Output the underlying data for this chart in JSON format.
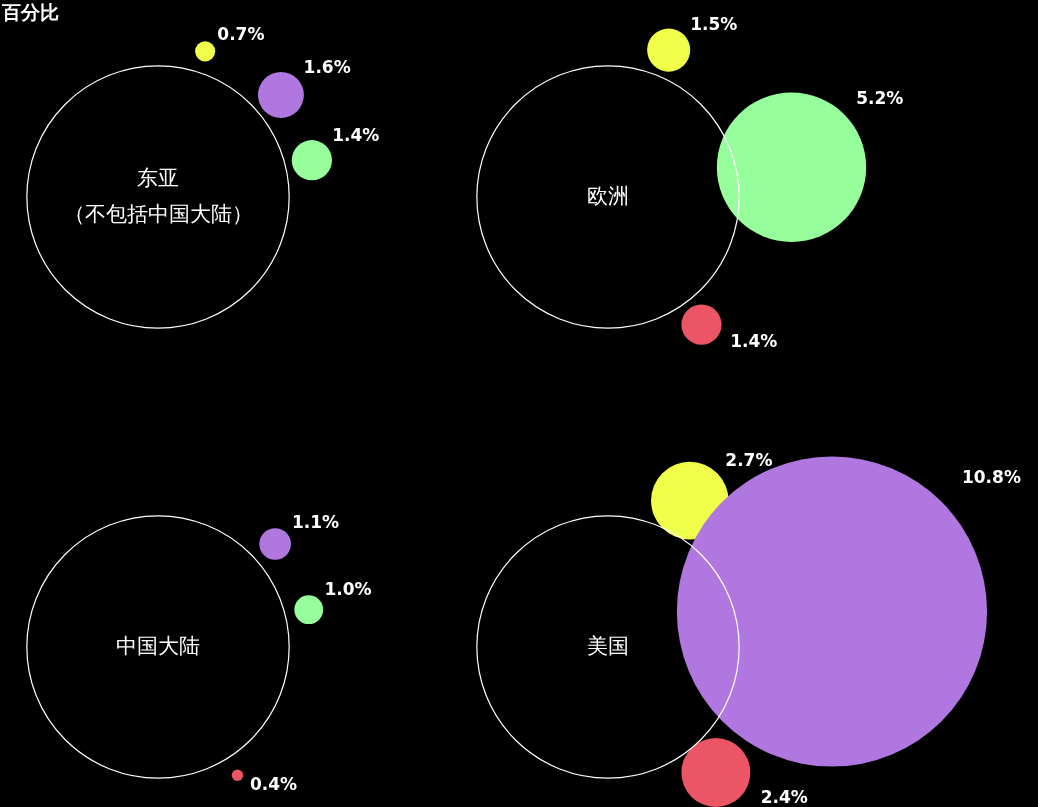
{
  "chart_data": [
    {
      "type": "other",
      "title": "东亚",
      "subtitle": "（不包括中国大陆）",
      "annotations": [
        "百分比"
      ],
      "categories": [
        null,
        null,
        null,
        null
      ],
      "values": [
        0.7,
        1.6,
        1.4,
        null
      ],
      "value_labels": [
        "0.7%",
        "1.6%",
        "1.4%",
        null
      ],
      "colors": [
        "#f0ff4a",
        "#b077e0",
        "#96ff9c",
        "#ec5565"
      ]
    },
    {
      "type": "other",
      "title": "欧洲",
      "categories": [
        null,
        null,
        null,
        null
      ],
      "values": [
        1.5,
        null,
        5.2,
        1.4
      ],
      "value_labels": [
        "1.5%",
        null,
        "5.2%",
        "1.4%"
      ],
      "colors": [
        "#f0ff4a",
        "#b077e0",
        "#96ff9c",
        "#ec5565"
      ]
    },
    {
      "type": "other",
      "title": "中国大陆",
      "categories": [
        null,
        null,
        null,
        null
      ],
      "values": [
        null,
        1.1,
        1.0,
        0.4
      ],
      "value_labels": [
        null,
        "1.1%",
        "1.0%",
        "0.4%"
      ],
      "colors": [
        "#f0ff4a",
        "#b077e0",
        "#96ff9c",
        "#ec5565"
      ]
    },
    {
      "type": "other",
      "title": "美国",
      "categories": [
        null,
        null,
        null,
        null
      ],
      "values": [
        2.7,
        10.8,
        null,
        2.4
      ],
      "value_labels": [
        "2.7%",
        "10.8%",
        null,
        "2.4%"
      ],
      "colors": [
        "#f0ff4a",
        "#b077e0",
        "#96ff9c",
        "#ec5565"
      ]
    }
  ]
}
